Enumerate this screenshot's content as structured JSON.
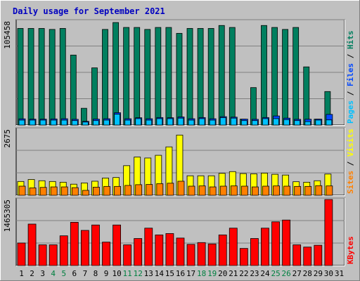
{
  "chart_data": {
    "type": "bar",
    "title": "Daily usage for September 2021",
    "colors": {
      "hits": "#007f5f",
      "files": "#0047ff",
      "pages": "#00c0ff",
      "visits": "#ffff00",
      "sites": "#ff8000",
      "kbytes": "#ff0000",
      "panel_bg": "#c0c0c0",
      "frame_bg": "#c0c0c0",
      "title": "#0000c0",
      "weekend_label": "#008040"
    },
    "days": [
      "1",
      "2",
      "3",
      "4",
      "5",
      "6",
      "7",
      "8",
      "9",
      "10",
      "11",
      "12",
      "13",
      "14",
      "15",
      "16",
      "17",
      "18",
      "19",
      "20",
      "21",
      "22",
      "23",
      "24",
      "25",
      "26",
      "27",
      "28",
      "29",
      "30",
      "31"
    ],
    "weekend_days": [
      "4",
      "5",
      "11",
      "12",
      "18",
      "19",
      "25",
      "26"
    ],
    "panels": [
      {
        "id": "requests",
        "ymax_label": "105458",
        "ymax": 105458,
        "legend": [
          "Pages",
          "/",
          "Files",
          "/",
          "Hits"
        ],
        "series": [
          {
            "name": "Hits",
            "values": [
              98000,
              98000,
              98000,
              97000,
              98000,
              71000,
              17000,
              58000,
              97000,
              104000,
              99000,
              99000,
              97000,
              99000,
              99000,
              93000,
              98000,
              98000,
              98000,
              101000,
              99000,
              6000,
              38000,
              101000,
              99000,
              97000,
              99000,
              59000,
              6000,
              34000,
              null
            ]
          },
          {
            "name": "Files",
            "values": [
              6300,
              6000,
              6000,
              6200,
              6400,
              5800,
              3800,
              6000,
              6400,
              12500,
              6400,
              7400,
              6400,
              7600,
              7400,
              8200,
              6400,
              7600,
              6400,
              8500,
              8000,
              6000,
              5800,
              7600,
              9200,
              7000,
              5800,
              5900,
              6000,
              10800,
              null
            ]
          },
          {
            "name": "Pages",
            "values": [
              5000,
              5000,
              5000,
              5000,
              5000,
              4500,
              3000,
              4500,
              5000,
              11000,
              5000,
              6500,
              5000,
              6500,
              6500,
              7000,
              5000,
              6500,
              5000,
              7500,
              7000,
              4500,
              4500,
              6500,
              6500,
              5500,
              4500,
              3500,
              5000,
              5200,
              null
            ]
          }
        ]
      },
      {
        "id": "visits",
        "ymax_label": "2675",
        "ymax": 2675,
        "legend": [
          "Sites",
          "/",
          "Visits"
        ],
        "series": [
          {
            "name": "Visits",
            "values": [
              560,
              640,
              590,
              560,
              530,
              450,
              500,
              570,
              700,
              720,
              1200,
              1550,
              1510,
              1620,
              1960,
              2440,
              790,
              790,
              790,
              890,
              960,
              880,
              870,
              900,
              850,
              820,
              550,
              530,
              590,
              860,
              null
            ]
          },
          {
            "name": "Sites",
            "values": [
              370,
              300,
              320,
              340,
              340,
              310,
              200,
              330,
              360,
              360,
              400,
              430,
              440,
              470,
              490,
              570,
              370,
              380,
              340,
              370,
              380,
              370,
              340,
              370,
              380,
              370,
              360,
              360,
              390,
              380,
              null
            ]
          }
        ]
      },
      {
        "id": "kbytes",
        "ymax_label": "1465305",
        "ymax": 1465305,
        "legend": [
          "KBytes"
        ],
        "series": [
          {
            "name": "KBytes",
            "values": [
              500000,
              920000,
              460000,
              460000,
              660000,
              960000,
              780000,
              900000,
              520000,
              900000,
              460000,
              600000,
              830000,
              680000,
              710000,
              610000,
              470000,
              510000,
              480000,
              680000,
              830000,
              380000,
              600000,
              830000,
              970000,
              1010000,
              460000,
              410000,
              450000,
              1465305,
              null
            ]
          }
        ]
      }
    ]
  }
}
